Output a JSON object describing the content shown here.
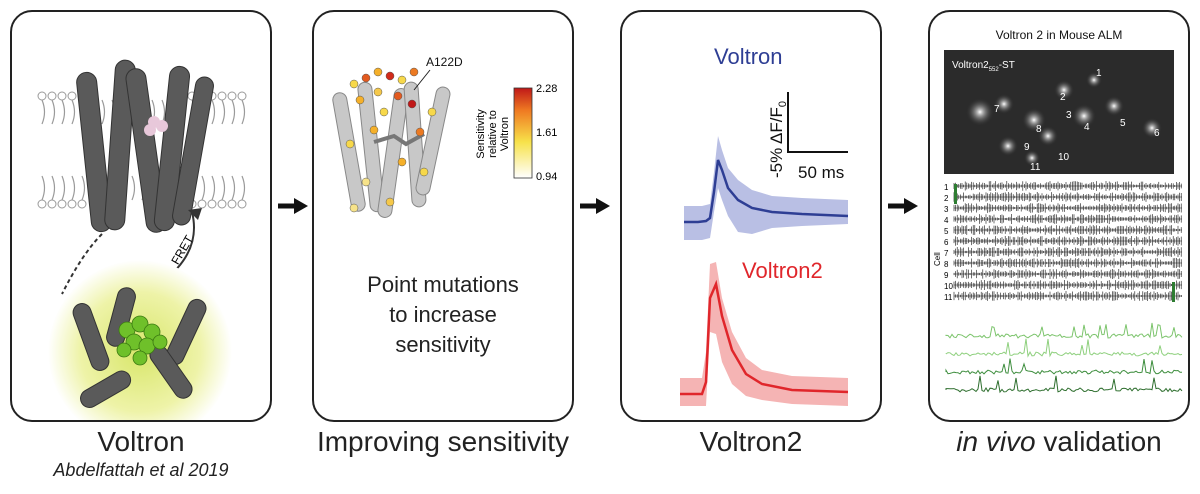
{
  "panels": [
    {
      "caption": "Voltron",
      "subcaption": "Abdelfattah et al 2019",
      "fret_label": "FRET"
    },
    {
      "caption": "Improving sensitivity",
      "mutation_label": "A122D",
      "colorbar_title": "Sensitivity relative to Voltron",
      "colorbar_ticks": [
        "2.28",
        "1.61",
        "0.94"
      ],
      "body_text": [
        "Point mutations",
        "to increase",
        "sensitivity"
      ]
    },
    {
      "caption": "Voltron2",
      "trace1_label": "Voltron",
      "trace2_label": "Voltron2",
      "scale_y": "-5% ΔF/F",
      "scale_y_sub": "0",
      "scale_x": "50 ms"
    },
    {
      "caption_italic": "in vivo",
      "caption_rest": " validation",
      "title": "Voltron 2 in Mouse ALM",
      "image_label": "Voltron2",
      "image_label_sub": "552",
      "image_label_suffix": "-ST",
      "axis_label": "Cell",
      "cell_ids": [
        "1",
        "2",
        "3",
        "4",
        "5",
        "6",
        "7",
        "8",
        "9",
        "10",
        "11"
      ]
    }
  ],
  "colors": {
    "voltron": "#2e3e94",
    "voltron2": "#e0262b",
    "green": "#2e7d32"
  }
}
